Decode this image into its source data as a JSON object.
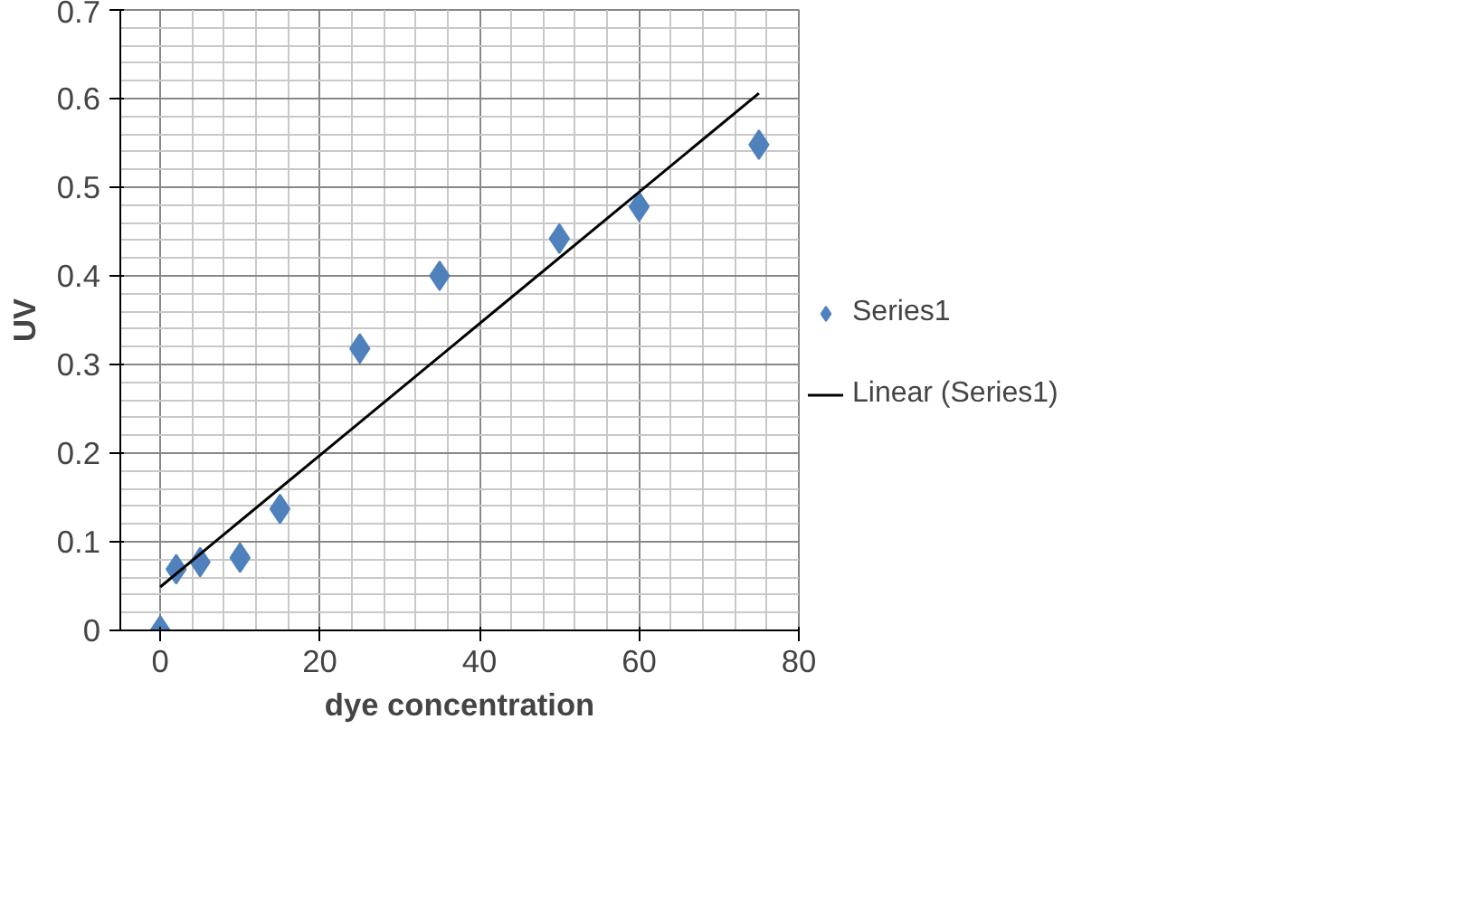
{
  "chart_data": {
    "type": "scatter",
    "xlabel": "dye concentration",
    "ylabel": "UV",
    "xlim": [
      -5,
      80
    ],
    "xticks": [
      0,
      20,
      40,
      60,
      80
    ],
    "ylim": [
      0,
      0.7
    ],
    "yticks": [
      0,
      0.1,
      0.2,
      0.3,
      0.4,
      0.5,
      0.6,
      0.7
    ],
    "grid": true,
    "legend": "right",
    "series": [
      {
        "name": "Series1",
        "marker": "diamond",
        "color": "#4f81bd",
        "x": [
          0,
          2,
          5,
          10,
          15,
          25,
          35,
          50,
          60,
          75
        ],
        "values": [
          0,
          0.069,
          0.077,
          0.082,
          0.137,
          0.318,
          0.4,
          0.442,
          0.478,
          0.548
        ]
      },
      {
        "name": "Linear (Series1)",
        "type": "line",
        "color": "#000000",
        "x": [
          0,
          75
        ],
        "values": [
          0.049,
          0.606
        ]
      }
    ]
  }
}
